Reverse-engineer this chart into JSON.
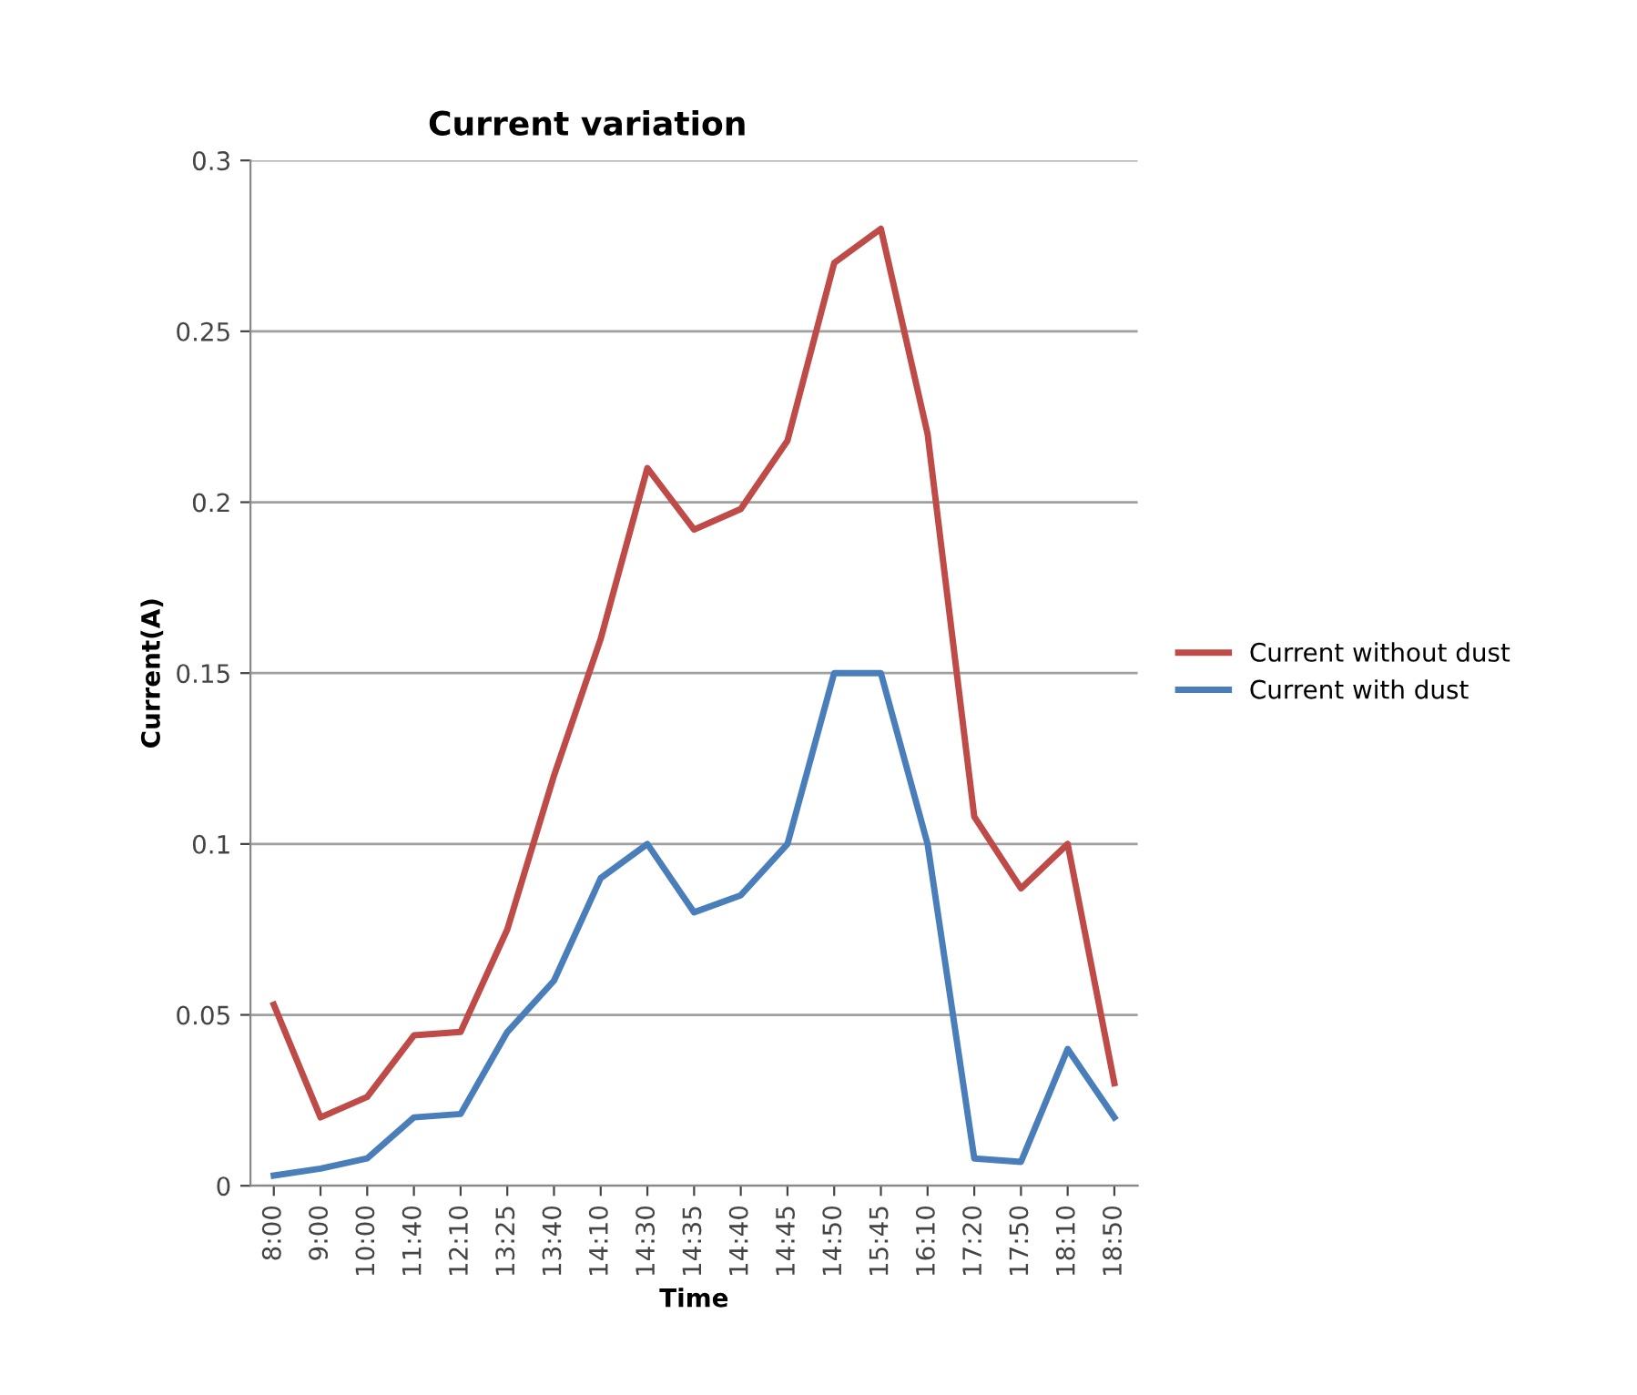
{
  "chart_data": {
    "type": "line",
    "title": "Current variation",
    "xlabel": "Time",
    "ylabel": "Current(A)",
    "categories": [
      "8:00",
      "9:00",
      "10:00",
      "11:40",
      "12:10",
      "13:25",
      "13:40",
      "14:10",
      "14:30",
      "14:35",
      "14:40",
      "14:45",
      "14:50",
      "15:45",
      "16:10",
      "17:20",
      "17:50",
      "18:10",
      "18:50"
    ],
    "series": [
      {
        "name": "Current without dust",
        "color": "#be4b48",
        "values": [
          0.053,
          0.02,
          0.026,
          0.044,
          0.045,
          0.075,
          0.12,
          0.16,
          0.21,
          0.192,
          0.198,
          0.218,
          0.27,
          0.28,
          0.22,
          0.108,
          0.087,
          0.1,
          0.03
        ]
      },
      {
        "name": "Current with dust",
        "color": "#4a7ebb",
        "values": [
          0.003,
          0.005,
          0.008,
          0.02,
          0.021,
          0.045,
          0.06,
          0.09,
          0.1,
          0.08,
          0.085,
          0.1,
          0.15,
          0.15,
          0.1,
          0.008,
          0.007,
          0.04,
          0.02
        ]
      }
    ],
    "ylim": [
      0,
      0.3
    ],
    "yticks": [
      0,
      0.05,
      0.1,
      0.15,
      0.2,
      0.25,
      0.3
    ],
    "grid": "y",
    "legend": "right",
    "marker": "none",
    "line_style": "solid"
  }
}
